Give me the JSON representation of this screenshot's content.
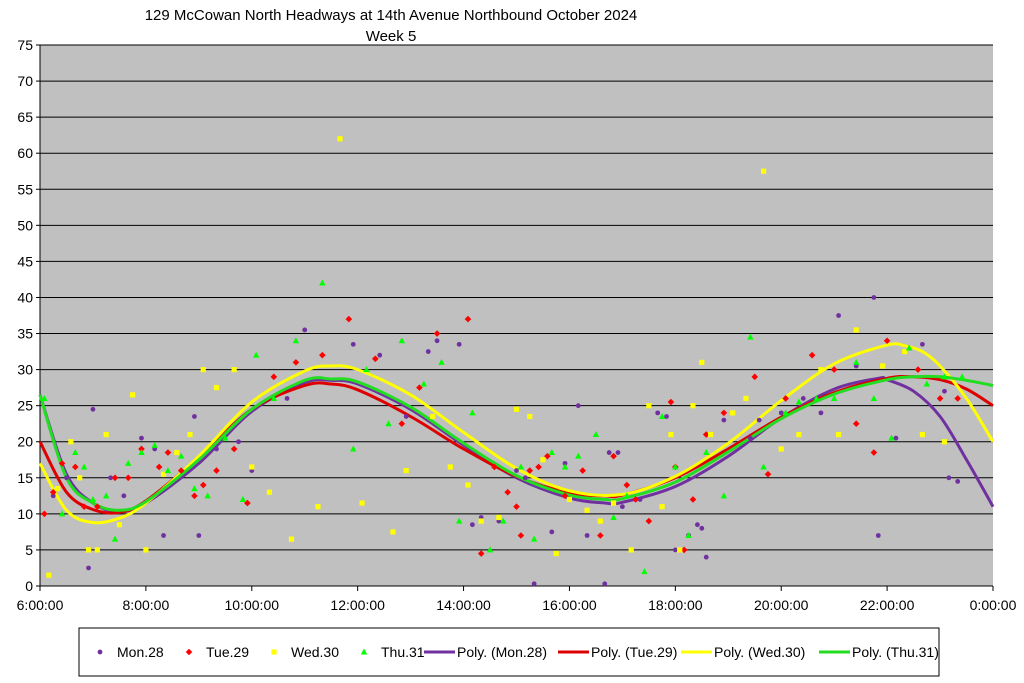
{
  "chart_data": {
    "type": "scatter",
    "title": "129 McCowan North Headways at 14th Avenue Northbound October 2024",
    "subtitle": "Week 5",
    "xlabel": "",
    "ylabel": "",
    "xlim": [
      "6:00:00",
      "0:00:00"
    ],
    "ylim": [
      0,
      75
    ],
    "x_ticks": [
      "6:00:00",
      "8:00:00",
      "10:00:00",
      "12:00:00",
      "14:00:00",
      "16:00:00",
      "18:00:00",
      "20:00:00",
      "22:00:00",
      "0:00:00"
    ],
    "y_ticks": [
      "0",
      "5",
      "10",
      "15",
      "20",
      "25",
      "30",
      "35",
      "40",
      "45",
      "50",
      "55",
      "60",
      "65",
      "70",
      "75"
    ],
    "grid": "horizontal",
    "legend_position": "bottom",
    "plot_background": "#C0C0C0",
    "series": [
      {
        "name": "Mon.28",
        "marker": "circle",
        "color": "#7030A0",
        "x": [
          "6:15",
          "6:30",
          "6:55",
          "7:00",
          "7:20",
          "7:35",
          "7:55",
          "8:10",
          "8:20",
          "8:55",
          "9:00",
          "9:20",
          "9:45",
          "10:00",
          "10:40",
          "11:00",
          "11:55",
          "12:25",
          "12:55",
          "13:20",
          "13:30",
          "13:55",
          "14:10",
          "14:20",
          "14:40",
          "15:00",
          "15:10",
          "15:20",
          "15:40",
          "15:55",
          "16:10",
          "16:20",
          "16:40",
          "16:45",
          "16:55",
          "17:00",
          "17:20",
          "17:40",
          "17:50",
          "18:00",
          "18:15",
          "18:25",
          "18:30",
          "18:35",
          "18:55",
          "19:25",
          "19:35",
          "20:00",
          "20:25",
          "20:45",
          "21:05",
          "21:25",
          "21:45",
          "21:50",
          "22:10",
          "22:40",
          "23:05",
          "23:10",
          "23:20"
        ],
        "y": [
          12.5,
          15,
          2.5,
          24.5,
          15,
          12.5,
          20.5,
          19,
          7,
          23.5,
          7,
          19,
          20,
          16,
          26,
          35.5,
          33.5,
          32,
          23.5,
          32.5,
          34,
          33.5,
          8.5,
          9.5,
          9,
          16,
          15,
          0.3,
          7.5,
          17,
          25,
          7,
          0.3,
          18.5,
          18.5,
          11,
          12,
          24,
          23.5,
          5,
          7,
          8.5,
          8,
          4,
          23,
          20.5,
          23,
          24,
          26,
          24,
          37.5,
          30.5,
          40,
          7,
          20.5,
          33.5,
          27,
          15,
          14.5
        ]
      },
      {
        "name": "Tue.29",
        "marker": "diamond",
        "color": "#FF0000",
        "x": [
          "6:05",
          "6:15",
          "6:25",
          "6:40",
          "6:50",
          "7:05",
          "7:25",
          "7:40",
          "7:55",
          "8:15",
          "8:25",
          "8:40",
          "8:55",
          "9:05",
          "9:20",
          "9:40",
          "9:55",
          "10:25",
          "10:50",
          "11:20",
          "11:50",
          "12:20",
          "12:50",
          "13:10",
          "13:30",
          "14:05",
          "14:20",
          "14:35",
          "14:50",
          "15:00",
          "15:05",
          "15:15",
          "15:25",
          "15:35",
          "15:55",
          "16:15",
          "16:35",
          "16:50",
          "17:05",
          "17:15",
          "17:30",
          "17:55",
          "18:00",
          "18:10",
          "18:20",
          "18:35",
          "18:55",
          "19:30",
          "19:45",
          "20:05",
          "20:35",
          "21:00",
          "21:25",
          "21:45",
          "22:00",
          "22:35",
          "23:00",
          "23:20"
        ],
        "y": [
          10,
          13,
          17,
          16.5,
          11,
          11,
          15,
          15,
          19,
          16.5,
          18.5,
          16,
          12.5,
          14,
          16,
          19,
          11.5,
          29,
          31,
          32,
          37,
          31.5,
          22.5,
          27.5,
          35,
          37,
          4.5,
          16.5,
          13,
          11,
          7,
          16,
          16.5,
          18,
          12.5,
          16,
          7,
          18,
          14,
          12,
          9,
          25.5,
          16.5,
          5,
          12,
          21,
          24,
          29,
          15.5,
          26,
          32,
          30,
          22.5,
          18.5,
          34,
          30,
          26,
          26
        ]
      },
      {
        "name": "Wed.30",
        "marker": "square",
        "color": "#FFFF00",
        "x": [
          "6:10",
          "6:20",
          "6:35",
          "6:45",
          "6:55",
          "7:05",
          "7:15",
          "7:30",
          "7:45",
          "8:00",
          "8:20",
          "8:35",
          "8:50",
          "9:05",
          "9:20",
          "9:40",
          "10:00",
          "10:20",
          "10:45",
          "11:15",
          "11:40",
          "12:05",
          "12:40",
          "12:55",
          "13:25",
          "13:45",
          "14:05",
          "14:20",
          "14:40",
          "15:00",
          "15:15",
          "15:30",
          "15:45",
          "16:00",
          "16:20",
          "16:35",
          "16:50",
          "17:10",
          "17:30",
          "17:45",
          "17:55",
          "18:05",
          "18:20",
          "18:30",
          "18:40",
          "19:05",
          "19:20",
          "19:40",
          "20:00",
          "20:20",
          "20:45",
          "21:05",
          "21:25",
          "21:55",
          "22:20",
          "22:40",
          "23:05"
        ],
        "y": [
          1.5,
          13.5,
          20,
          15,
          5,
          5,
          21,
          8.5,
          26.5,
          5,
          15.5,
          18.5,
          21,
          30,
          27.5,
          30,
          16.5,
          13,
          6.5,
          11,
          62,
          11.5,
          7.5,
          16,
          23.5,
          16.5,
          14,
          9,
          9.5,
          24.5,
          23.5,
          17.5,
          4.5,
          12,
          10.5,
          9,
          11.5,
          5,
          25,
          11,
          21,
          5,
          25,
          31,
          21,
          24,
          26,
          57.5,
          19,
          21,
          30,
          21,
          35.5,
          30.5,
          32.5,
          21,
          20
        ]
      },
      {
        "name": "Thu.31",
        "marker": "triangle",
        "color": "#00FF00",
        "x": [
          "6:05",
          "6:25",
          "6:40",
          "6:50",
          "7:00",
          "7:15",
          "7:25",
          "7:40",
          "7:55",
          "8:10",
          "8:25",
          "8:40",
          "8:55",
          "9:10",
          "9:30",
          "9:50",
          "10:05",
          "10:25",
          "10:50",
          "11:20",
          "11:55",
          "12:10",
          "12:35",
          "12:50",
          "13:15",
          "13:35",
          "13:55",
          "14:10",
          "14:30",
          "14:45",
          "15:05",
          "15:20",
          "15:40",
          "15:55",
          "16:10",
          "16:30",
          "16:50",
          "17:05",
          "17:25",
          "17:45",
          "18:00",
          "18:15",
          "18:35",
          "18:55",
          "19:25",
          "19:40",
          "20:05",
          "20:20",
          "20:40",
          "21:00",
          "21:25",
          "21:45",
          "22:05",
          "22:25",
          "22:45",
          "23:05",
          "23:25"
        ],
        "y": [
          26,
          10,
          18.5,
          16.5,
          12,
          12.5,
          6.5,
          17,
          18.5,
          19.5,
          16,
          18,
          13.5,
          12.5,
          20.5,
          12,
          32,
          26,
          34,
          42,
          19,
          30,
          22.5,
          34,
          28,
          31,
          9,
          24,
          5,
          9,
          16.5,
          6.5,
          18.5,
          16.5,
          18,
          21,
          9.5,
          12.5,
          2,
          23.5,
          16.5,
          7,
          18.5,
          12.5,
          34.5,
          16.5,
          24,
          25.5,
          26,
          26,
          31,
          26,
          20.5,
          33,
          28,
          29,
          29
        ]
      }
    ],
    "trendlines": [
      {
        "name": "Poly. (Mon.28)",
        "color": "#7030A0",
        "type": "polynomial",
        "x": [
          "6:00",
          "6:30",
          "7:00",
          "7:30",
          "8:00",
          "9:00",
          "10:00",
          "11:00",
          "11:30",
          "12:00",
          "13:00",
          "14:00",
          "15:00",
          "16:00",
          "16:40",
          "17:00",
          "18:00",
          "19:00",
          "20:00",
          "21:00",
          "21:50",
          "22:00",
          "22:30",
          "23:00",
          "23:30",
          "0:00"
        ],
        "y": [
          26.5,
          15.5,
          11.5,
          10.3,
          11.5,
          17,
          24.2,
          28.2,
          28.5,
          28,
          24.5,
          19.5,
          15,
          12.2,
          11.5,
          11.6,
          13.8,
          18,
          23.3,
          27.3,
          28.8,
          28.6,
          27,
          23.5,
          17.5,
          11
        ]
      },
      {
        "name": "Poly. (Tue.29)",
        "color": "#DD0000",
        "type": "polynomial",
        "x": [
          "6:00",
          "6:30",
          "7:00",
          "7:30",
          "8:00",
          "9:00",
          "10:00",
          "11:00",
          "11:30",
          "12:00",
          "13:00",
          "14:00",
          "15:00",
          "16:00",
          "16:40",
          "17:00",
          "18:00",
          "19:00",
          "20:00",
          "21:00",
          "22:00",
          "22:30",
          "23:00",
          "23:30",
          "0:00"
        ],
        "y": [
          20,
          13,
          10.6,
          10.2,
          11.8,
          17.8,
          24.5,
          27.8,
          28,
          27.2,
          23.5,
          19,
          15.2,
          12.9,
          12.5,
          12.6,
          15,
          19,
          23.4,
          26.8,
          28.8,
          29,
          28.6,
          27.3,
          25
        ]
      },
      {
        "name": "Poly. (Wed.30)",
        "color": "#FFFF00",
        "type": "polynomial",
        "x": [
          "6:00",
          "6:30",
          "7:00",
          "7:30",
          "8:00",
          "9:00",
          "10:00",
          "11:00",
          "11:30",
          "12:00",
          "13:00",
          "14:00",
          "15:00",
          "16:00",
          "17:00",
          "18:00",
          "19:00",
          "20:00",
          "21:00",
          "22:00",
          "22:20",
          "22:40",
          "23:00",
          "23:30",
          "0:00"
        ],
        "y": [
          17,
          10.5,
          8.8,
          9.4,
          11.5,
          18,
          25.5,
          29.8,
          30.5,
          30,
          26.5,
          21.3,
          16.3,
          13.2,
          12.7,
          15.2,
          19.8,
          25.7,
          30.8,
          33.4,
          33.3,
          32.5,
          30.5,
          26,
          20
        ]
      },
      {
        "name": "Poly. (Thu.31)",
        "color": "#22DD22",
        "type": "polynomial",
        "x": [
          "6:00",
          "6:30",
          "7:00",
          "7:30",
          "8:00",
          "9:00",
          "10:00",
          "11:00",
          "11:30",
          "12:00",
          "13:00",
          "14:00",
          "15:00",
          "16:00",
          "16:40",
          "17:00",
          "18:00",
          "19:00",
          "20:00",
          "21:00",
          "22:00",
          "22:30",
          "23:00",
          "23:30",
          "0:00"
        ],
        "y": [
          26.5,
          15,
          11.5,
          10.5,
          11.7,
          17.5,
          24.5,
          28.5,
          28.7,
          28.3,
          24.8,
          19.8,
          15.3,
          12.6,
          12,
          12.1,
          14.4,
          18.6,
          23.2,
          26.6,
          28.6,
          29,
          29,
          28.5,
          27.8
        ]
      }
    ]
  }
}
